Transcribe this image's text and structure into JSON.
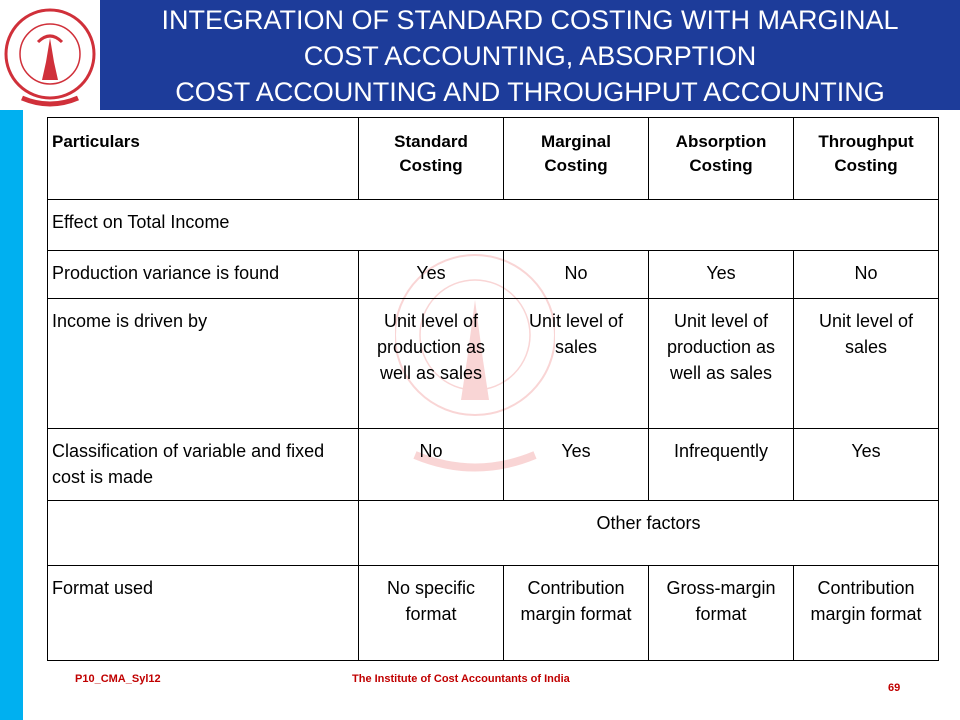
{
  "header": {
    "title": [
      "INTEGRATION OF STANDARD COSTING WITH MARGINAL",
      "COST ACCOUNTING, ABSORPTION",
      "COST ACCOUNTING AND THROUGHPUT ACCOUNTING"
    ]
  },
  "table": {
    "columns": [
      "Particulars",
      "Standard Costing",
      "Marginal Costing",
      "Absorption Costing",
      "Throughput Costing"
    ],
    "rows": [
      {
        "section": "Effect on Total Income"
      },
      [
        "Production variance is found",
        "Yes",
        "No",
        "Yes",
        "No"
      ],
      [
        "Income is driven by",
        "Unit level of production as well as sales",
        "Unit level of sales",
        "Unit level of production as well as sales",
        "Unit level of sales"
      ],
      [
        "Classification of variable and fixed cost is made",
        "No",
        "Yes",
        "Infrequently",
        "Yes"
      ],
      {
        "subsection": "Other factors"
      },
      [
        "Format used",
        "No specific format",
        "Contribution margin format",
        "Gross-margin format",
        "Contribution margin format"
      ]
    ]
  },
  "footer": {
    "code": "P10_CMA_Syl12",
    "institute": "The Institute of Cost Accountants of India",
    "page": "69"
  }
}
